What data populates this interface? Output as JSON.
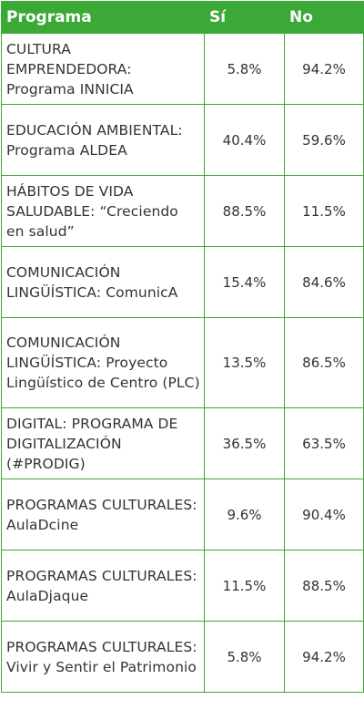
{
  "table": {
    "headers": {
      "program": "Programa",
      "yes": "Sí",
      "no": "No"
    },
    "rows": [
      {
        "program": "CULTURA EMPRENDEDORA: Programa INNICIA",
        "yes": "5.8%",
        "no": "94.2%"
      },
      {
        "program": "EDUCACIÓN AMBIENTAL: Programa ALDEA",
        "yes": "40.4%",
        "no": "59.6%"
      },
      {
        "program": "HÁBITOS DE VIDA SALUDABLE: “Creciendo en salud”",
        "yes": "88.5%",
        "no": "11.5%"
      },
      {
        "program": "COMUNICACIÓN LINGÜÍSTICA: ComunicA",
        "yes": "15.4%",
        "no": "84.6%"
      },
      {
        "program": "COMUNICACIÓN LINGÜÍSTICA: Proyecto Lingüístico de Centro (PLC)",
        "yes": "13.5%",
        "no": "86.5%"
      },
      {
        "program": "DIGITAL: PROGRAMA DE DIGITALIZACIÓN (#PRODIG)",
        "yes": "36.5%",
        "no": "63.5%"
      },
      {
        "program": "PROGRAMAS CULTURALES: AulaDcine",
        "yes": "9.6%",
        "no": "90.4%"
      },
      {
        "program": "PROGRAMAS CULTURALES: AulaDjaque",
        "yes": "11.5%",
        "no": "88.5%"
      },
      {
        "program": "PROGRAMAS CULTURALES: Vivir y Sentir el Patrimonio",
        "yes": "5.8%",
        "no": "94.2%"
      }
    ]
  },
  "colors": {
    "header_bg": "#3aa935",
    "header_text": "#ffffff",
    "border": "#3aa935",
    "body_text": "#333333"
  }
}
